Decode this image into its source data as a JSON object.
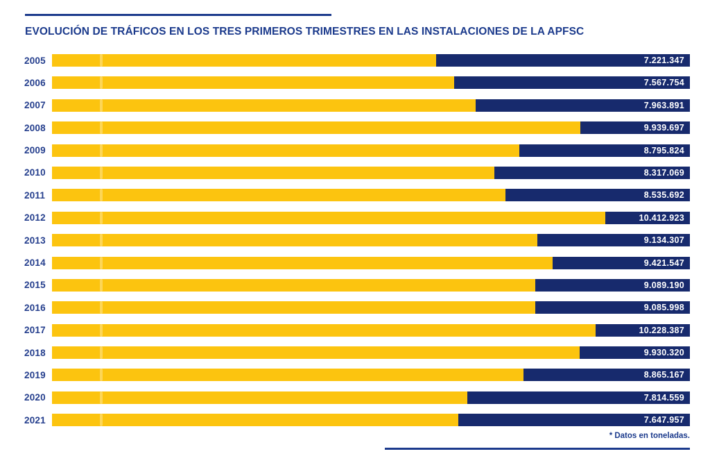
{
  "chart_data": {
    "type": "bar",
    "orientation": "horizontal",
    "title": "EVOLUCIÓN DE TRÁFICOS EN LOS TRES PRIMEROS TRIMESTRES EN LAS INSTALACIONES DE LA APFSC",
    "note": "* Datos en toneladas.",
    "unit": "toneladas",
    "xlim": [
      0,
      12000000
    ],
    "grid": false,
    "legend": "none",
    "colors": {
      "value_segment": "#fcc40f",
      "remainder_segment": "#172a6d",
      "accent": "#1b3a8c",
      "value_text": "#ffffff"
    },
    "categories": [
      "2005",
      "2006",
      "2007",
      "2008",
      "2009",
      "2010",
      "2011",
      "2012",
      "2013",
      "2014",
      "2015",
      "2016",
      "2017",
      "2018",
      "2019",
      "2020",
      "2021"
    ],
    "values": [
      7221347,
      7567754,
      7963891,
      9939697,
      8795824,
      8317069,
      8535692,
      10412923,
      9134307,
      9421547,
      9089190,
      9085998,
      10228387,
      9930320,
      8865167,
      7814559,
      7647957
    ],
    "rows": [
      {
        "year": "2005",
        "value": 7221347,
        "label": "7.221.347"
      },
      {
        "year": "2006",
        "value": 7567754,
        "label": "7.567.754"
      },
      {
        "year": "2007",
        "value": 7963891,
        "label": "7.963.891"
      },
      {
        "year": "2008",
        "value": 9939697,
        "label": "9.939.697"
      },
      {
        "year": "2009",
        "value": 8795824,
        "label": "8.795.824"
      },
      {
        "year": "2010",
        "value": 8317069,
        "label": "8.317.069"
      },
      {
        "year": "2011",
        "value": 8535692,
        "label": "8.535.692"
      },
      {
        "year": "2012",
        "value": 10412923,
        "label": "10.412.923"
      },
      {
        "year": "2013",
        "value": 9134307,
        "label": "9.134.307"
      },
      {
        "year": "2014",
        "value": 9421547,
        "label": "9.421.547"
      },
      {
        "year": "2015",
        "value": 9089190,
        "label": "9.089.190"
      },
      {
        "year": "2016",
        "value": 9085998,
        "label": "9.085.998"
      },
      {
        "year": "2017",
        "value": 10228387,
        "label": "10.228.387"
      },
      {
        "year": "2018",
        "value": 9930320,
        "label": "9.930.320"
      },
      {
        "year": "2019",
        "value": 8865167,
        "label": "8.865.167"
      },
      {
        "year": "2020",
        "value": 7814559,
        "label": "7.814.559"
      },
      {
        "year": "2021",
        "value": 7647957,
        "label": "7.647.957"
      }
    ]
  }
}
